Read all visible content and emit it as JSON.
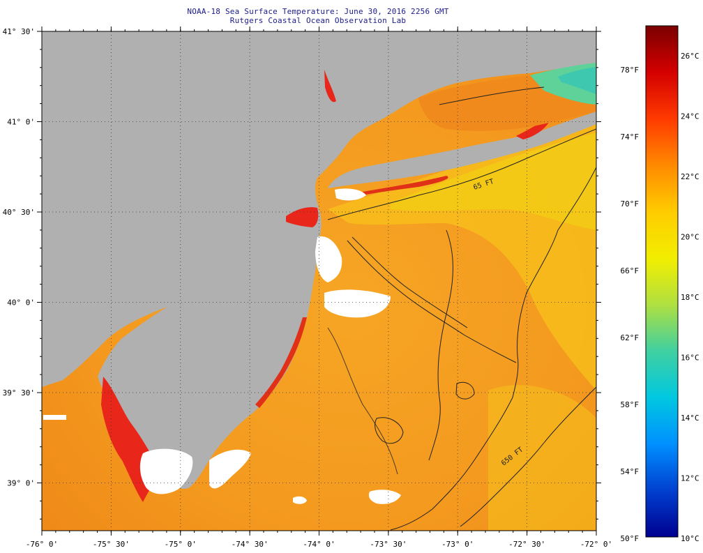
{
  "header": {
    "title": "NOAA-18 Sea Surface Temperature:  June 30, 2016 2256 GMT",
    "subtitle": "Rutgers Coastal Ocean Observation Lab"
  },
  "map": {
    "lat_labels": [
      "41° 30'",
      "41° 0'",
      "40° 30'",
      "40° 0'",
      "39° 30'",
      "39° 0'"
    ],
    "lon_labels": [
      "-76° 0'",
      "-75° 30'",
      "-75° 0'",
      "-74° 30'",
      "-74° 0'",
      "-73° 30'",
      "-73° 0'",
      "-72° 30'",
      "-72° 0'"
    ],
    "contour_labels": [
      "65 FT",
      "650 FT"
    ],
    "colors": {
      "land": "#b0b0b0",
      "ocean_base": "#f39a1e",
      "cloud_mask": "#ffffff",
      "warm_coastal": "#e8261a",
      "cool_water": "#5fd29a"
    }
  },
  "colorbar": {
    "celsius_labels": [
      "26°C",
      "24°C",
      "22°C",
      "20°C",
      "18°C",
      "16°C",
      "14°C",
      "12°C",
      "10°C"
    ],
    "fahrenheit_labels": [
      "78°F",
      "74°F",
      "70°F",
      "66°F",
      "62°F",
      "58°F",
      "54°F",
      "50°F"
    ],
    "gradient": [
      "#7a0000",
      "#d40000",
      "#ff3a00",
      "#ff8a00",
      "#ffcc00",
      "#f2ee00",
      "#b0e040",
      "#40d0a0",
      "#00c8e0",
      "#0090ff",
      "#0040d0",
      "#000090"
    ]
  }
}
